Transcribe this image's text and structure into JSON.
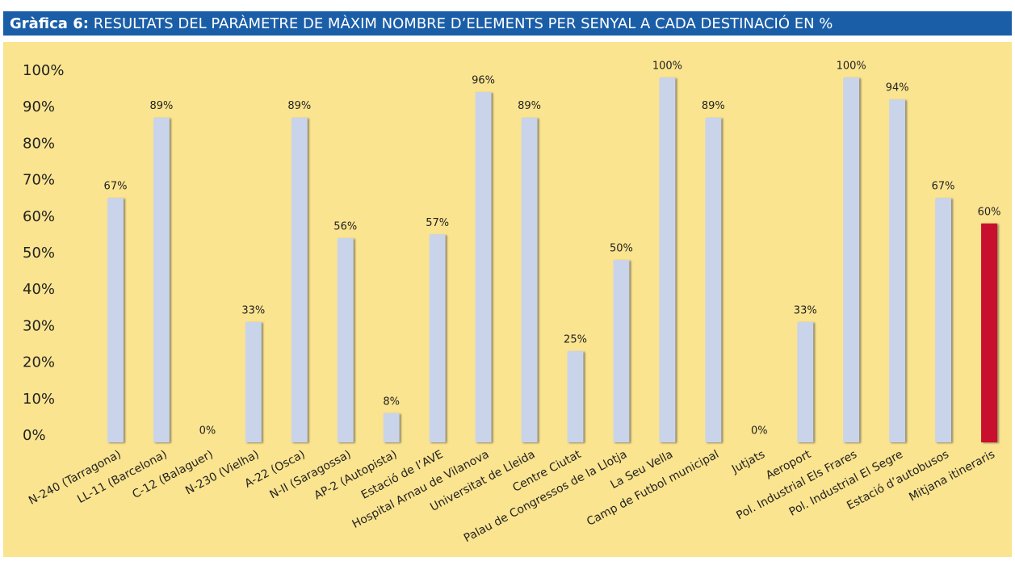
{
  "chart_data": {
    "type": "bar",
    "title_prefix": "Gràfica 6:",
    "title": "RESULTATS DEL PARÀMETRE DE MÀXIM NOMBRE D’ELEMENTS PER SENYAL A CADA DESTINACIÓ EN %",
    "categories": [
      "N-240 (Tarragona)",
      "LL-11 (Barcelona)",
      "C-12 (Balaguer)",
      "N-230 (Vielha)",
      "A-22 (Osca)",
      "N-II (Saragossa)",
      "AP-2 (Autopista)",
      "Estació de l’AVE",
      "Hospital Arnau de Vilanova",
      "Universitat de Lleida",
      "Centre Ciutat",
      "Palau de Congressos de la Llotja",
      "La Seu Vella",
      "Camp de Futbol municipal",
      "Jutjats",
      "Aeroport",
      "Pol. Industrial Els Frares",
      "Pol. Industrial El Segre",
      "Estació d’autobusos",
      "Mitjana itineraris"
    ],
    "values": [
      67,
      89,
      0,
      33,
      89,
      56,
      8,
      57,
      96,
      89,
      25,
      50,
      100,
      89,
      0,
      33,
      100,
      94,
      67,
      60
    ],
    "value_labels": [
      "67%",
      "89%",
      "0%",
      "33%",
      "89%",
      "56%",
      "8%",
      "57%",
      "96%",
      "89%",
      "25%",
      "50%",
      "100%",
      "89%",
      "0%",
      "33%",
      "100%",
      "94%",
      "67%",
      "60%"
    ],
    "colors": [
      "#c9d4ea",
      "#c9d4ea",
      "#c9d4ea",
      "#c9d4ea",
      "#c9d4ea",
      "#c9d4ea",
      "#c9d4ea",
      "#c9d4ea",
      "#c9d4ea",
      "#c9d4ea",
      "#c9d4ea",
      "#c9d4ea",
      "#c9d4ea",
      "#c9d4ea",
      "#c9d4ea",
      "#c9d4ea",
      "#c9d4ea",
      "#c9d4ea",
      "#c9d4ea",
      "#c8102e"
    ],
    "ylim": [
      0,
      100
    ],
    "yticks": [
      {
        "value": 0,
        "label": "0%"
      },
      {
        "value": 10,
        "label": "10%"
      },
      {
        "value": 20,
        "label": "20%"
      },
      {
        "value": 30,
        "label": "30%"
      },
      {
        "value": 40,
        "label": "40%"
      },
      {
        "value": 50,
        "label": "50%"
      },
      {
        "value": 60,
        "label": "60%"
      },
      {
        "value": 70,
        "label": "70%"
      },
      {
        "value": 80,
        "label": "80%"
      },
      {
        "value": 90,
        "label": "90%"
      },
      {
        "value": 100,
        "label": "100%"
      }
    ],
    "grid": false
  }
}
